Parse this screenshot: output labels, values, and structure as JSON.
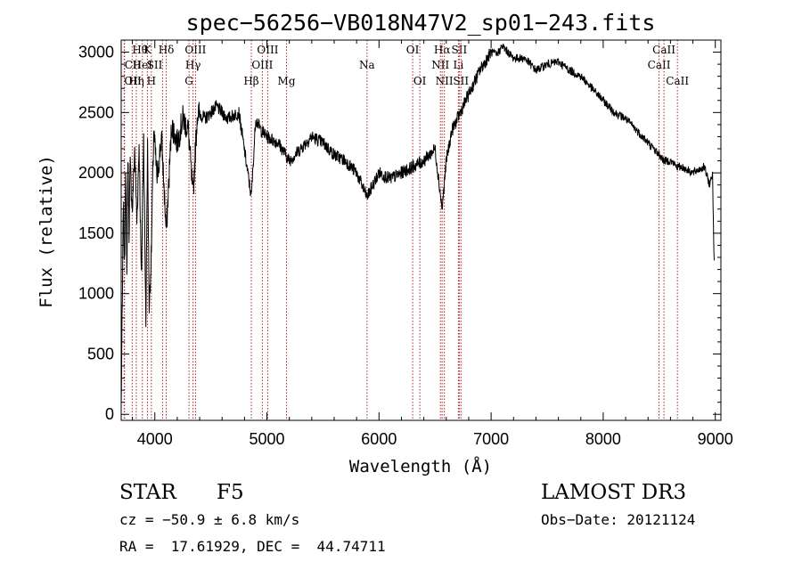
{
  "chart_data": {
    "type": "line",
    "title": "spec−56256−VB018N47V2_sp01−243.fits",
    "xlabel": "Wavelength (Å)",
    "ylabel": "Flux (relative)",
    "xlim": [
      3700,
      9050
    ],
    "ylim": [
      -50,
      3100
    ],
    "xticks": [
      4000,
      5000,
      6000,
      7000,
      8000,
      9000
    ],
    "yticks": [
      0,
      500,
      1000,
      1500,
      2000,
      2500,
      3000
    ],
    "line_color": "#000000",
    "marker_color": "#b22222",
    "spectrum": {
      "x": [
        3700,
        3710,
        3720,
        3730,
        3740,
        3750,
        3760,
        3770,
        3780,
        3800,
        3820,
        3840,
        3860,
        3880,
        3900,
        3920,
        3935,
        3950,
        3968,
        3990,
        4020,
        4060,
        4102,
        4150,
        4200,
        4250,
        4300,
        4340,
        4380,
        4450,
        4550,
        4650,
        4750,
        4861,
        4900,
        4950,
        5000,
        5100,
        5200,
        5300,
        5400,
        5500,
        5600,
        5700,
        5800,
        5893,
        6000,
        6100,
        6200,
        6300,
        6400,
        6500,
        6563,
        6600,
        6650,
        6700,
        6750,
        6800,
        6900,
        7000,
        7050,
        7100,
        7200,
        7300,
        7400,
        7500,
        7600,
        7700,
        7800,
        7900,
        8000,
        8100,
        8200,
        8300,
        8400,
        8500,
        8542,
        8600,
        8662,
        8700,
        8800,
        8900,
        8950,
        8975,
        8990
      ],
      "y": [
        50,
        900,
        1800,
        1200,
        2100,
        1100,
        2150,
        1500,
        2050,
        1700,
        2200,
        1600,
        2250,
        1100,
        2300,
        780,
        2200,
        900,
        1300,
        2350,
        1950,
        2300,
        1500,
        2400,
        2250,
        2450,
        2350,
        1800,
        2500,
        2450,
        2550,
        2450,
        2500,
        1800,
        2450,
        2350,
        2300,
        2250,
        2100,
        2200,
        2300,
        2250,
        2150,
        2100,
        2000,
        1800,
        2000,
        1950,
        2000,
        2050,
        2100,
        2200,
        1700,
        2100,
        2350,
        2450,
        2550,
        2650,
        2850,
        3000,
        2980,
        3050,
        2950,
        2950,
        2850,
        2900,
        2920,
        2850,
        2800,
        2700,
        2600,
        2500,
        2450,
        2350,
        2250,
        2150,
        2100,
        2100,
        2050,
        2050,
        2000,
        2050,
        1900,
        2000,
        1250
      ]
    },
    "lines": [
      {
        "label": "OII",
        "wave": 3727,
        "row": 2,
        "align": "start"
      },
      {
        "label": "Hη",
        "wave": 3835,
        "row": 2,
        "align": "middle"
      },
      {
        "label": "Hθ",
        "wave": 3798,
        "row": 0,
        "align": "start"
      },
      {
        "label": "CII",
        "wave": 3730,
        "row": 1,
        "align": "start"
      },
      {
        "label": "HeI",
        "wave": 3889,
        "row": 1,
        "align": "middle"
      },
      {
        "label": "K",
        "wave": 3934,
        "row": 0,
        "align": "middle"
      },
      {
        "label": "H",
        "wave": 3969,
        "row": 2,
        "align": "middle"
      },
      {
        "label": "SII",
        "wave": 4069,
        "row": 1,
        "align": "end"
      },
      {
        "label": "Hδ",
        "wave": 4102,
        "row": 0,
        "align": "middle"
      },
      {
        "label": "G",
        "wave": 4305,
        "row": 2,
        "align": "middle"
      },
      {
        "label": "Hγ",
        "wave": 4341,
        "row": 1,
        "align": "middle"
      },
      {
        "label": "OIII",
        "wave": 4363,
        "row": 0,
        "align": "middle"
      },
      {
        "label": "Hβ",
        "wave": 4861,
        "row": 2,
        "align": "middle"
      },
      {
        "label": "OIII",
        "wave": 4959,
        "row": 1,
        "align": "middle"
      },
      {
        "label": "OIII",
        "wave": 5007,
        "row": 0,
        "align": "middle"
      },
      {
        "label": "Mg",
        "wave": 5175,
        "row": 2,
        "align": "middle"
      },
      {
        "label": "Na",
        "wave": 5893,
        "row": 1,
        "align": "middle"
      },
      {
        "label": "OI",
        "wave": 6300,
        "row": 0,
        "align": "middle"
      },
      {
        "label": "OI",
        "wave": 6364,
        "row": 2,
        "align": "middle"
      },
      {
        "label": "NII",
        "wave": 6548,
        "row": 1,
        "align": "middle"
      },
      {
        "label": "Hα",
        "wave": 6563,
        "row": 0,
        "align": "middle"
      },
      {
        "label": "NII",
        "wave": 6583,
        "row": 2,
        "align": "middle"
      },
      {
        "label": "Li",
        "wave": 6708,
        "row": 1,
        "align": "middle"
      },
      {
        "label": "SII",
        "wave": 6716,
        "row": 0,
        "align": "middle"
      },
      {
        "label": "SII",
        "wave": 6731,
        "row": 2,
        "align": "middle"
      },
      {
        "label": "CaII",
        "wave": 8498,
        "row": 1,
        "align": "middle"
      },
      {
        "label": "CaII",
        "wave": 8542,
        "row": 0,
        "align": "middle"
      },
      {
        "label": "CaII",
        "wave": 8662,
        "row": 2,
        "align": "middle"
      }
    ]
  },
  "info": {
    "object_class": "STAR",
    "subclass": "F5",
    "redshift_text": "cz = −50.9 ± 6.8 km/s",
    "coords_text": "RA =  17.61929, DEC =  44.74711",
    "survey": "LAMOST DR3",
    "obs_date": "Obs−Date: 20121124"
  }
}
